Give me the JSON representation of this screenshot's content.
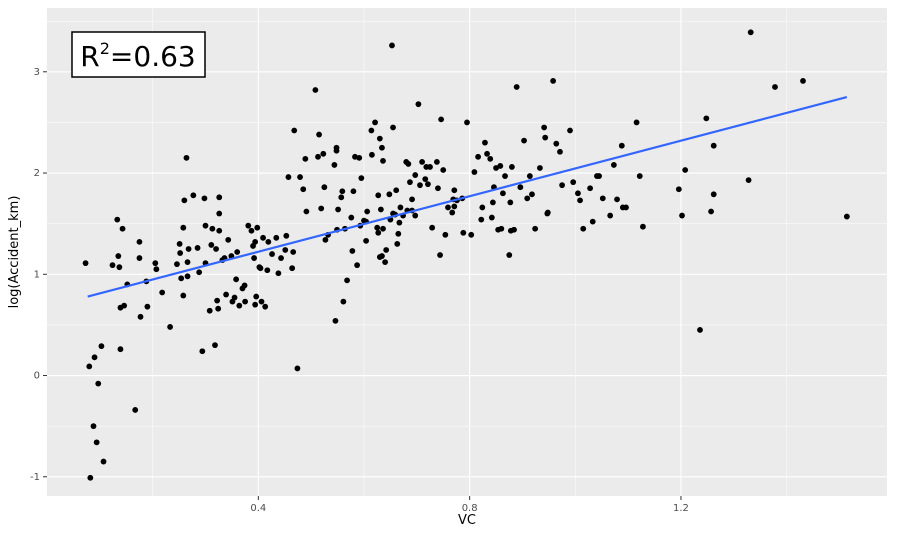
{
  "chart_data": {
    "type": "scatter",
    "x_label": "VC",
    "y_label": "log(Accident_km)",
    "annotation": {
      "text": "R",
      "superscript": "2",
      "suffix": "=0.63"
    },
    "xlim": [
      0.0,
      1.59
    ],
    "ylim": [
      -1.19,
      3.63
    ],
    "xticks": [
      0.4,
      0.8,
      1.2
    ],
    "yticks": [
      -1,
      0,
      1,
      2,
      3
    ],
    "grid": true,
    "color": "#000000",
    "trend_line": {
      "x": [
        0.077,
        1.514
      ],
      "values": [
        0.78,
        2.75
      ],
      "color": "#3366ff"
    },
    "x": [
      0.082,
      0.088,
      0.094,
      0.097,
      0.107,
      0.103,
      0.09,
      0.08,
      0.139,
      0.167,
      0.073,
      0.133,
      0.143,
      0.135,
      0.124,
      0.137,
      0.139,
      0.146,
      0.152,
      0.175,
      0.175,
      0.177,
      0.188,
      0.19,
      0.205,
      0.207,
      0.218,
      0.233,
      0.246,
      0.251,
      0.252,
      0.254,
      0.258,
      0.258,
      0.26,
      0.264,
      0.266,
      0.266,
      0.268,
      0.277,
      0.285,
      0.288,
      0.294,
      0.298,
      0.3,
      0.3,
      0.308,
      0.311,
      0.313,
      0.318,
      0.32,
      0.322,
      0.324,
      0.326,
      0.326,
      0.326,
      0.332,
      0.336,
      0.339,
      0.343,
      0.349,
      0.351,
      0.355,
      0.358,
      0.36,
      0.364,
      0.37,
      0.374,
      0.375,
      0.381,
      0.387,
      0.39,
      0.392,
      0.394,
      0.394,
      0.396,
      0.398,
      0.402,
      0.404,
      0.406,
      0.409,
      0.413,
      0.417,
      0.419,
      0.426,
      0.434,
      0.438,
      0.443,
      0.451,
      0.453,
      0.457,
      0.464,
      0.466,
      0.468,
      0.474,
      0.479,
      0.485,
      0.489,
      0.491,
      0.508,
      0.513,
      0.515,
      0.519,
      0.523,
      0.525,
      0.527,
      0.532,
      0.544,
      0.546,
      0.548,
      0.548,
      0.549,
      0.551,
      0.557,
      0.559,
      0.561,
      0.564,
      0.568,
      0.576,
      0.578,
      0.58,
      0.583,
      0.587,
      0.591,
      0.593,
      0.595,
      0.6,
      0.604,
      0.604,
      0.606,
      0.614,
      0.615,
      0.621,
      0.625,
      0.627,
      0.627,
      0.63,
      0.63,
      0.632,
      0.634,
      0.634,
      0.636,
      0.636,
      0.64,
      0.642,
      0.648,
      0.65,
      0.653,
      0.655,
      0.655,
      0.659,
      0.661,
      0.663,
      0.665,
      0.667,
      0.669,
      0.674,
      0.68,
      0.682,
      0.684,
      0.687,
      0.691,
      0.691,
      0.697,
      0.697,
      0.703,
      0.706,
      0.71,
      0.716,
      0.718,
      0.721,
      0.725,
      0.729,
      0.738,
      0.74,
      0.744,
      0.746,
      0.75,
      0.754,
      0.759,
      0.767,
      0.769,
      0.771,
      0.771,
      0.776,
      0.786,
      0.788,
      0.795,
      0.803,
      0.809,
      0.816,
      0.822,
      0.824,
      0.829,
      0.833,
      0.839,
      0.842,
      0.844,
      0.846,
      0.85,
      0.854,
      0.858,
      0.86,
      0.863,
      0.867,
      0.875,
      0.877,
      0.878,
      0.88,
      0.884,
      0.889,
      0.896,
      0.903,
      0.909,
      0.914,
      0.918,
      0.924,
      0.933,
      0.941,
      0.943,
      0.947,
      0.948,
      0.958,
      0.964,
      0.971,
      0.975,
      0.99,
      0.996,
      1.005,
      1.009,
      1.015,
      1.028,
      1.033,
      1.041,
      1.045,
      1.052,
      1.066,
      1.073,
      1.079,
      1.088,
      1.09,
      1.096,
      1.116,
      1.122,
      1.128,
      1.196,
      1.202,
      1.208,
      1.236,
      1.248,
      1.257,
      1.262,
      1.262,
      1.328,
      1.332,
      1.378,
      1.431,
      1.514
    ],
    "values": [
      -1.01,
      -0.5,
      -0.66,
      -0.08,
      -0.85,
      0.29,
      0.18,
      0.09,
      0.26,
      -0.34,
      1.11,
      1.54,
      1.45,
      1.18,
      1.09,
      1.07,
      0.67,
      0.69,
      0.9,
      1.32,
      1.16,
      0.58,
      0.93,
      0.68,
      1.11,
      1.05,
      0.82,
      0.48,
      1.1,
      1.3,
      1.21,
      0.96,
      0.79,
      1.46,
      1.73,
      2.15,
      0.98,
      1.12,
      1.25,
      1.78,
      1.26,
      1.02,
      0.24,
      1.75,
      1.11,
      1.48,
      0.64,
      1.29,
      1.45,
      0.3,
      1.25,
      0.74,
      0.66,
      1.76,
      1.6,
      1.43,
      1.14,
      1.16,
      0.8,
      1.34,
      1.18,
      0.73,
      0.77,
      0.95,
      1.22,
      0.69,
      0.86,
      0.89,
      0.73,
      1.48,
      1.43,
      1.28,
      1.16,
      1.32,
      0.7,
      0.78,
      1.46,
      1.07,
      1.06,
      0.73,
      1.36,
      0.68,
      1.04,
      1.32,
      1.2,
      1.36,
      1.01,
      1.16,
      1.24,
      1.38,
      1.96,
      1.06,
      1.22,
      2.42,
      0.07,
      1.96,
      1.84,
      2.14,
      1.62,
      2.82,
      2.16,
      2.38,
      1.65,
      2.19,
      1.86,
      1.34,
      1.39,
      2.08,
      0.54,
      2.22,
      2.25,
      1.44,
      1.64,
      1.76,
      1.82,
      0.73,
      1.45,
      0.94,
      1.56,
      1.23,
      1.82,
      2.16,
      1.09,
      2.15,
      1.48,
      1.95,
      1.53,
      1.52,
      1.33,
      1.62,
      2.42,
      2.18,
      2.5,
      1.46,
      1.78,
      1.41,
      1.17,
      2.34,
      1.64,
      1.18,
      2.25,
      2.12,
      1.45,
      1.12,
      1.24,
      1.79,
      1.54,
      3.26,
      1.6,
      2.45,
      1.59,
      1.83,
      1.3,
      1.4,
      1.51,
      1.66,
      1.58,
      2.11,
      1.63,
      2.09,
      1.91,
      1.74,
      1.63,
      1.98,
      1.58,
      2.68,
      1.88,
      2.11,
      1.94,
      2.06,
      1.89,
      2.06,
      1.46,
      2.11,
      1.85,
      1.19,
      2.53,
      2.03,
      1.39,
      1.66,
      1.61,
      1.74,
      1.67,
      1.83,
      1.73,
      1.75,
      1.41,
      2.5,
      1.39,
      2.01,
      2.16,
      1.54,
      1.66,
      2.3,
      2.19,
      2.14,
      1.56,
      1.71,
      1.86,
      2.05,
      1.44,
      2.07,
      1.45,
      1.8,
      1.97,
      1.19,
      1.71,
      1.43,
      2.06,
      1.44,
      2.85,
      1.86,
      2.32,
      1.75,
      1.97,
      1.79,
      1.45,
      2.05,
      2.45,
      2.35,
      1.6,
      1.61,
      2.91,
      2.29,
      2.21,
      1.88,
      2.42,
      1.91,
      1.8,
      1.73,
      1.45,
      1.85,
      1.52,
      1.97,
      1.97,
      1.75,
      1.58,
      2.08,
      1.74,
      2.27,
      1.66,
      1.66,
      2.5,
      1.97,
      1.47,
      1.84,
      1.58,
      2.03,
      0.45,
      2.54,
      1.62,
      2.27,
      1.79,
      1.93,
      3.39,
      2.85,
      2.91,
      1.57
    ]
  }
}
